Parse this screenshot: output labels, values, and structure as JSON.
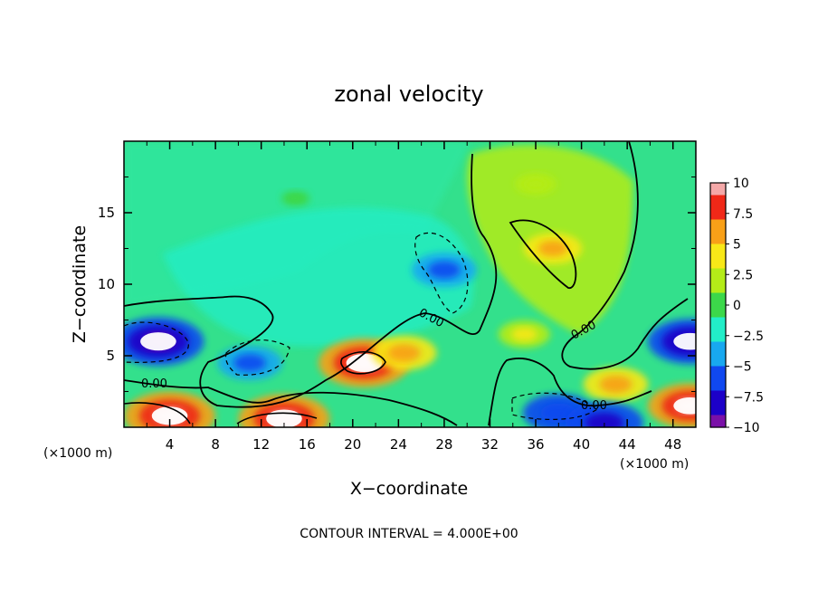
{
  "chart_data": {
    "type": "heatmap",
    "title": "zonal velocity",
    "xlabel": "X−coordinate",
    "ylabel": "Z−coordinate",
    "x_unit_left": "(×1000 m)",
    "x_unit_right": "(×1000 m)",
    "xlim": [
      0,
      50
    ],
    "ylim": [
      0,
      20
    ],
    "x_ticks": [
      4,
      8,
      12,
      16,
      20,
      24,
      28,
      32,
      36,
      40,
      44,
      48
    ],
    "x_tick_labels": [
      "4",
      "8",
      "12",
      "16",
      "20",
      "24",
      "28",
      "32",
      "36",
      "40",
      "44",
      "48"
    ],
    "y_ticks": [
      5,
      10,
      15
    ],
    "y_tick_labels": [
      "5",
      "10",
      "15"
    ],
    "colorbar": {
      "range": [
        -10,
        10
      ],
      "tick_labels": [
        "10",
        "7.5",
        "5",
        "2.5",
        "0",
        "−2.5",
        "−5",
        "−7.5",
        "−10"
      ],
      "tick_values": [
        10,
        7.5,
        5,
        2.5,
        0,
        -2.5,
        -5,
        -7.5,
        -10
      ],
      "colors": [
        "#7a10a8",
        "#1c00c8",
        "#1048f0",
        "#18a8f0",
        "#22eec8",
        "#3cd84a",
        "#b4ec18",
        "#f8e818",
        "#f8a018",
        "#f02818",
        "#f4a8a8"
      ]
    },
    "contour_interval_label": "CONTOUR INTERVAL =  4.000E+00",
    "contour_labels": [
      "0.00",
      "0.00",
      "0.00",
      "0.00"
    ],
    "features": [
      {
        "x": 3.0,
        "z": 6.0,
        "u": -10
      },
      {
        "x": 4.0,
        "z": 0.8,
        "u": 10
      },
      {
        "x": 14.0,
        "z": 0.6,
        "u": 10
      },
      {
        "x": 21.0,
        "z": 4.5,
        "u": 10
      },
      {
        "x": 24.5,
        "z": 5.2,
        "u": 6
      },
      {
        "x": 37.5,
        "z": 12.5,
        "u": 5
      },
      {
        "x": 28.0,
        "z": 11.0,
        "u": -6
      },
      {
        "x": 11.0,
        "z": 4.5,
        "u": -6
      },
      {
        "x": 38.0,
        "z": 1.0,
        "u": -7
      },
      {
        "x": 43.0,
        "z": 3.0,
        "u": 6
      },
      {
        "x": 49.5,
        "z": 6.0,
        "u": -9
      },
      {
        "x": 49.5,
        "z": 1.5,
        "u": 9
      },
      {
        "x": 42.0,
        "z": 0.3,
        "u": -8
      },
      {
        "x": 35.0,
        "z": 6.5,
        "u": 4
      },
      {
        "x": 15.0,
        "z": 16.0,
        "u": 0.5
      },
      {
        "x": 36.0,
        "z": 17.0,
        "u": 2.5
      }
    ]
  }
}
